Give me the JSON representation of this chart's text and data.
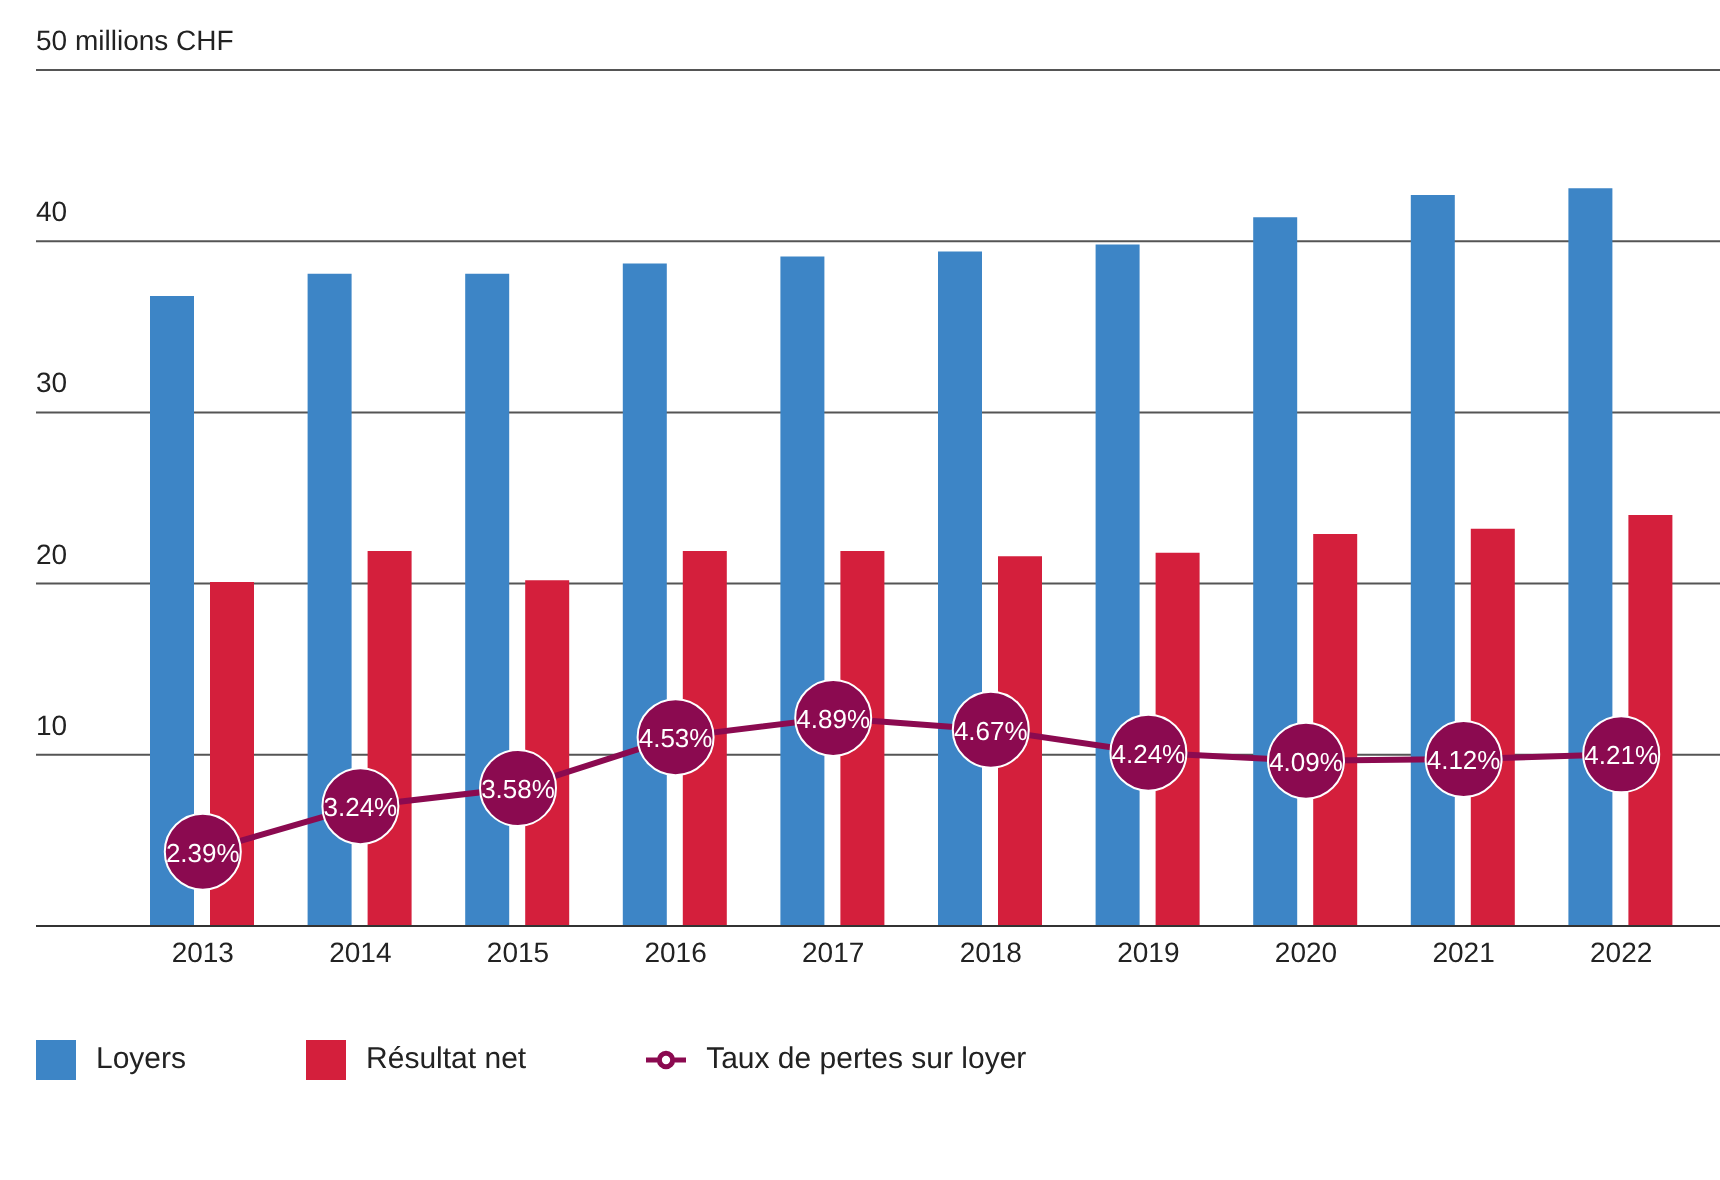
{
  "chart_data": {
    "type": "bar",
    "categories": [
      "2013",
      "2014",
      "2015",
      "2016",
      "2017",
      "2018",
      "2019",
      "2020",
      "2021",
      "2022"
    ],
    "series": [
      {
        "name": "Loyers",
        "color": "#3d85c6",
        "values": [
          36.8,
          38.1,
          38.1,
          38.7,
          39.1,
          39.4,
          39.8,
          41.4,
          42.7,
          43.1
        ]
      },
      {
        "name": "Résultat net",
        "color": "#d41f3c",
        "values": [
          20.1,
          21.9,
          20.2,
          21.9,
          21.9,
          21.6,
          21.8,
          22.9,
          23.2,
          24.0
        ]
      },
      {
        "name": "Taux de pertes sur loyer",
        "type": "line",
        "axis": "y2",
        "color": "#8b0a50",
        "marker": "circle",
        "values": [
          2.39,
          3.24,
          3.58,
          4.53,
          4.89,
          4.67,
          4.24,
          4.09,
          4.12,
          4.21
        ],
        "value_labels": [
          "2.39%",
          "3.24%",
          "3.58%",
          "4.53%",
          "4.89%",
          "4.67%",
          "4.24%",
          "4.09%",
          "4.12%",
          "4.21%"
        ]
      }
    ],
    "ylim": [
      0,
      50
    ],
    "yticks": [
      {
        "value": 0,
        "label": null
      },
      10,
      20,
      30,
      40,
      {
        "value": 50,
        "label": "50 millions CHF"
      }
    ],
    "y2lim": [
      1,
      17
    ],
    "grid": "y",
    "legend": "bottom",
    "tick_labels": "xy"
  }
}
